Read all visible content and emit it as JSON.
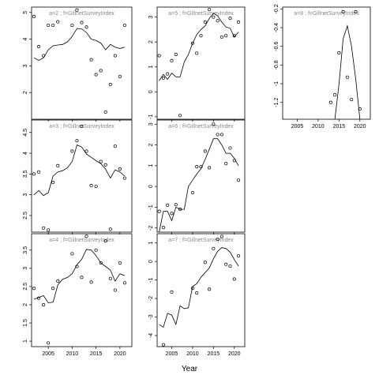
{
  "chart_data": [
    {
      "type": "scatter",
      "panel_label": "a=2 ; f=GillnetSurveyIndex",
      "xlim": [
        2001.5,
        2022.5
      ],
      "ylim": [
        1.0,
        5.2
      ],
      "xticks": [
        2005,
        2010,
        2015,
        2020
      ],
      "yticks": [
        2,
        3,
        4,
        5
      ],
      "points": {
        "x": [
          2002,
          2003,
          2004,
          2005,
          2006,
          2007,
          2010,
          2011,
          2012,
          2013,
          2014,
          2015,
          2016,
          2017,
          2018,
          2019,
          2020,
          2021
        ],
        "y": [
          4.85,
          3.72,
          3.38,
          4.52,
          4.52,
          4.65,
          4.52,
          5.09,
          4.62,
          4.45,
          3.23,
          2.67,
          2.82,
          1.27,
          2.3,
          3.38,
          2.6,
          4.52
        ]
      },
      "line": {
        "x": [
          2002,
          2003,
          2004,
          2005,
          2006,
          2007,
          2008,
          2009,
          2010,
          2011,
          2012,
          2013,
          2014,
          2015,
          2016,
          2017,
          2018,
          2019,
          2020,
          2021
        ],
        "y": [
          3.3,
          3.2,
          3.3,
          3.6,
          3.75,
          3.78,
          3.8,
          3.9,
          4.1,
          4.4,
          4.38,
          4.25,
          4.0,
          3.95,
          3.85,
          3.6,
          3.8,
          3.7,
          3.65,
          3.7
        ]
      }
    },
    {
      "type": "scatter",
      "panel_label": "a=5 ; f=GillnetSurveyIndex",
      "xlim": [
        2001.5,
        2022.5
      ],
      "ylim": [
        -1.1,
        3.4
      ],
      "xticks": [
        2005,
        2010,
        2015,
        2020
      ],
      "yticks": [
        -1,
        0,
        1,
        2,
        3
      ],
      "points": {
        "x": [
          2002,
          2003,
          2004,
          2005,
          2006,
          2007,
          2010,
          2011,
          2012,
          2013,
          2014,
          2015,
          2016,
          2017,
          2018,
          2019,
          2020,
          2021
        ],
        "y": [
          1.45,
          0.55,
          0.72,
          1.25,
          1.5,
          -0.95,
          1.95,
          1.55,
          2.25,
          2.8,
          3.3,
          3.0,
          2.85,
          2.2,
          2.25,
          2.95,
          2.25,
          2.8
        ]
      },
      "line": {
        "x": [
          2002,
          2003,
          2004,
          2005,
          2006,
          2007,
          2008,
          2009,
          2010,
          2011,
          2012,
          2013,
          2014,
          2015,
          2016,
          2017,
          2018,
          2019,
          2020,
          2021
        ],
        "y": [
          0.45,
          0.7,
          0.5,
          0.75,
          0.6,
          0.6,
          1.2,
          1.5,
          1.95,
          2.3,
          2.5,
          2.65,
          2.95,
          3.15,
          3.05,
          2.8,
          2.6,
          2.55,
          2.2,
          2.4
        ]
      }
    },
    {
      "type": "line",
      "panel_label": "a=8 ; f=GillnetSurveyIndex",
      "xlim": [
        2001.5,
        2022.5
      ],
      "ylim": [
        -1.38,
        -0.18
      ],
      "xticks": [
        2005,
        2010,
        2015,
        2020
      ],
      "yticks": [
        -1.2,
        -1.0,
        -0.8,
        -0.6,
        -0.4,
        -0.2
      ],
      "points": {
        "x": [
          2013,
          2014,
          2015,
          2016,
          2017,
          2018,
          2019,
          2020
        ],
        "y": [
          -1.2,
          -1.12,
          -0.67,
          -0.23,
          -0.93,
          -1.17,
          -0.23,
          -1.27
        ]
      },
      "line": {
        "x": [
          2014,
          2015,
          2016,
          2017,
          2018,
          2019,
          2020
        ],
        "y": [
          -1.38,
          -1.0,
          -0.52,
          -0.38,
          -0.6,
          -0.95,
          -1.38
        ]
      }
    },
    {
      "type": "scatter",
      "panel_label": "a=3 ; f=GillnetSurveyIndex",
      "xlim": [
        2001.5,
        2022.5
      ],
      "ylim": [
        2.1,
        4.8
      ],
      "xticks": [
        2005,
        2010,
        2015,
        2020
      ],
      "yticks": [
        2.5,
        3.0,
        3.5,
        4.0,
        4.5
      ],
      "points": {
        "x": [
          2002,
          2003,
          2004,
          2005,
          2006,
          2007,
          2010,
          2011,
          2012,
          2013,
          2014,
          2015,
          2016,
          2017,
          2018,
          2019,
          2020,
          2021
        ],
        "y": [
          3.5,
          3.55,
          2.2,
          2.15,
          3.3,
          3.7,
          4.05,
          4.3,
          4.65,
          4.05,
          3.22,
          3.2,
          3.8,
          3.72,
          2.17,
          4.17,
          3.62,
          3.4
        ]
      },
      "line": {
        "x": [
          2002,
          2003,
          2004,
          2005,
          2006,
          2007,
          2008,
          2009,
          2010,
          2011,
          2012,
          2013,
          2014,
          2015,
          2016,
          2017,
          2018,
          2019,
          2020,
          2021
        ],
        "y": [
          3.0,
          3.1,
          2.98,
          3.05,
          3.45,
          3.55,
          3.58,
          3.65,
          3.8,
          4.2,
          4.15,
          3.98,
          3.9,
          3.82,
          3.75,
          3.62,
          3.4,
          3.6,
          3.55,
          3.45
        ]
      }
    },
    {
      "type": "scatter",
      "panel_label": "a=6 ; f=GillnetSurveyIndex",
      "xlim": [
        2001.5,
        2022.5
      ],
      "ylim": [
        -2.2,
        3.2
      ],
      "xticks": [
        2005,
        2010,
        2015,
        2020
      ],
      "yticks": [
        -2,
        -1,
        0,
        1,
        2,
        3
      ],
      "points": {
        "x": [
          2002,
          2003,
          2004,
          2005,
          2006,
          2007,
          2010,
          2011,
          2012,
          2013,
          2014,
          2015,
          2016,
          2017,
          2018,
          2019,
          2020,
          2021
        ],
        "y": [
          -1.2,
          -1.98,
          -0.9,
          -1.3,
          -0.88,
          -1.1,
          -0.3,
          0.95,
          0.95,
          1.7,
          0.9,
          3.0,
          2.5,
          2.5,
          1.1,
          1.85,
          1.25,
          0.3
        ]
      },
      "line": {
        "x": [
          2002,
          2003,
          2004,
          2005,
          2006,
          2007,
          2008,
          2009,
          2010,
          2011,
          2012,
          2013,
          2014,
          2015,
          2016,
          2017,
          2018,
          2019,
          2020,
          2021
        ],
        "y": [
          -2.2,
          -1.2,
          -1.2,
          -1.65,
          -1.0,
          -1.1,
          -1.1,
          0.0,
          0.3,
          0.6,
          0.85,
          1.3,
          1.8,
          2.3,
          2.3,
          2.0,
          1.6,
          1.6,
          1.35,
          1.0
        ]
      }
    },
    {
      "type": "scatter",
      "panel_label": "a=4 ; f=GillnetSurveyIndex",
      "xlim": [
        2001.5,
        2022.5
      ],
      "ylim": [
        0.85,
        3.95
      ],
      "xticks": [
        2005,
        2010,
        2015,
        2020
      ],
      "yticks": [
        1.0,
        1.5,
        2.0,
        2.5,
        3.0,
        3.5
      ],
      "points": {
        "x": [
          2002,
          2003,
          2004,
          2005,
          2006,
          2007,
          2010,
          2011,
          2012,
          2013,
          2014,
          2015,
          2016,
          2017,
          2018,
          2019,
          2020,
          2021
        ],
        "y": [
          2.45,
          2.18,
          2.0,
          0.95,
          2.45,
          2.65,
          3.4,
          3.05,
          2.75,
          3.88,
          2.62,
          3.5,
          3.15,
          3.75,
          2.72,
          2.4,
          3.15,
          2.6
        ]
      },
      "line": {
        "x": [
          2002,
          2003,
          2004,
          2005,
          2006,
          2007,
          2008,
          2009,
          2010,
          2011,
          2012,
          2013,
          2014,
          2015,
          2016,
          2017,
          2018,
          2019,
          2020,
          2021
        ],
        "y": [
          2.15,
          2.2,
          2.25,
          2.05,
          2.07,
          2.55,
          2.7,
          2.75,
          2.85,
          3.1,
          3.25,
          3.52,
          3.5,
          3.35,
          3.15,
          3.05,
          2.95,
          2.65,
          2.85,
          2.8
        ]
      }
    },
    {
      "type": "scatter",
      "panel_label": "a=7 ; f=GillnetSurveyIndex",
      "xlim": [
        2001.5,
        2022.5
      ],
      "ylim": [
        -4.6,
        1.5
      ],
      "xticks": [
        2005,
        2010,
        2015,
        2020
      ],
      "yticks": [
        -4,
        -3,
        -2,
        -1,
        0,
        1
      ],
      "points": {
        "x": [
          2003,
          2005,
          2010,
          2011,
          2013,
          2014,
          2015,
          2016,
          2017,
          2018,
          2019,
          2020,
          2021
        ],
        "y": [
          -4.5,
          -1.65,
          -1.45,
          -1.7,
          -0.05,
          -1.5,
          0.7,
          1.2,
          1.35,
          -0.15,
          -0.25,
          -0.95,
          0.3
        ]
      },
      "line": {
        "x": [
          2002,
          2003,
          2004,
          2005,
          2006,
          2007,
          2008,
          2009,
          2010,
          2011,
          2012,
          2013,
          2014,
          2015,
          2016,
          2017,
          2018,
          2019,
          2020,
          2021
        ],
        "y": [
          -3.4,
          -3.55,
          -2.8,
          -2.9,
          -3.4,
          -2.4,
          -2.55,
          -2.5,
          -1.35,
          -1.2,
          -0.85,
          -0.6,
          -0.35,
          0.15,
          0.55,
          0.75,
          0.7,
          0.5,
          0.1,
          -0.25
        ]
      }
    }
  ],
  "axis": {
    "xlabel": "Year"
  }
}
